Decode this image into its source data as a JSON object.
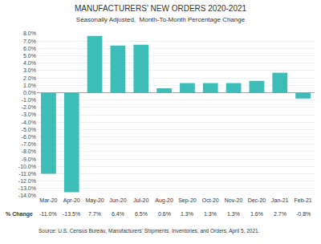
{
  "chart_data": {
    "type": "bar",
    "title": "MANUFACTURERS' NEW ORDERS 2020-2021",
    "subtitle": "Seasonally Adjusted,  Month-To-Month Percentage Change",
    "categories": [
      "Mar-20",
      "Apr-20",
      "May-20",
      "Jun-20",
      "Jul-20",
      "Aug-20",
      "Sep-20",
      "Oct-20",
      "Nov-20",
      "Dec-20",
      "Jan-21",
      "Feb-21"
    ],
    "values": [
      -11.0,
      -13.5,
      7.7,
      6.4,
      6.5,
      0.6,
      1.3,
      1.3,
      1.3,
      1.6,
      2.7,
      -0.8
    ],
    "value_labels": [
      "-11.0%",
      "-13.5%",
      "7.7%",
      "6.4%",
      "6.5%",
      "0.6%",
      "1.3%",
      "1.3%",
      "1.3%",
      "1.6%",
      "2.7%",
      "-0.8%"
    ],
    "color": "#3dbdb8",
    "ylim": [
      -14.0,
      8.0
    ],
    "yticks": [
      {
        "value": -14.0,
        "label": "-14.0%"
      },
      {
        "value": -13.0,
        "label": "-13.0%"
      },
      {
        "value": -12.0,
        "label": "-12.0%"
      },
      {
        "value": -11.0,
        "label": "-11.0%"
      },
      {
        "value": -10.0,
        "label": "-10.0%"
      },
      {
        "value": -9.0,
        "label": "-9.0%"
      },
      {
        "value": -8.0,
        "label": "-8.0%"
      },
      {
        "value": -7.0,
        "label": "-7.0%"
      },
      {
        "value": -6.0,
        "label": "-6.0%"
      },
      {
        "value": -5.0,
        "label": "-5.0%"
      },
      {
        "value": -4.0,
        "label": "-4.0%"
      },
      {
        "value": -3.0,
        "label": "-3.0%"
      },
      {
        "value": -2.0,
        "label": "-2.0%"
      },
      {
        "value": -1.0,
        "label": "-1.0%"
      },
      {
        "value": 0.0,
        "label": "0.0%"
      },
      {
        "value": 1.0,
        "label": "1.0%"
      },
      {
        "value": 2.0,
        "label": "2.0%"
      },
      {
        "value": 3.0,
        "label": "3.0%"
      },
      {
        "value": 4.0,
        "label": "4.0%"
      },
      {
        "value": 5.0,
        "label": "5.0%"
      },
      {
        "value": 6.0,
        "label": "6.0%"
      },
      {
        "value": 7.0,
        "label": "7.0%"
      },
      {
        "value": 8.0,
        "label": "8.0%"
      }
    ],
    "grid": true,
    "annotations": [
      "% Change",
      "Source: U.S. Census Bureau, Manufacturers' Shipments, Inventories, and Orders, April 5, 2021."
    ]
  }
}
